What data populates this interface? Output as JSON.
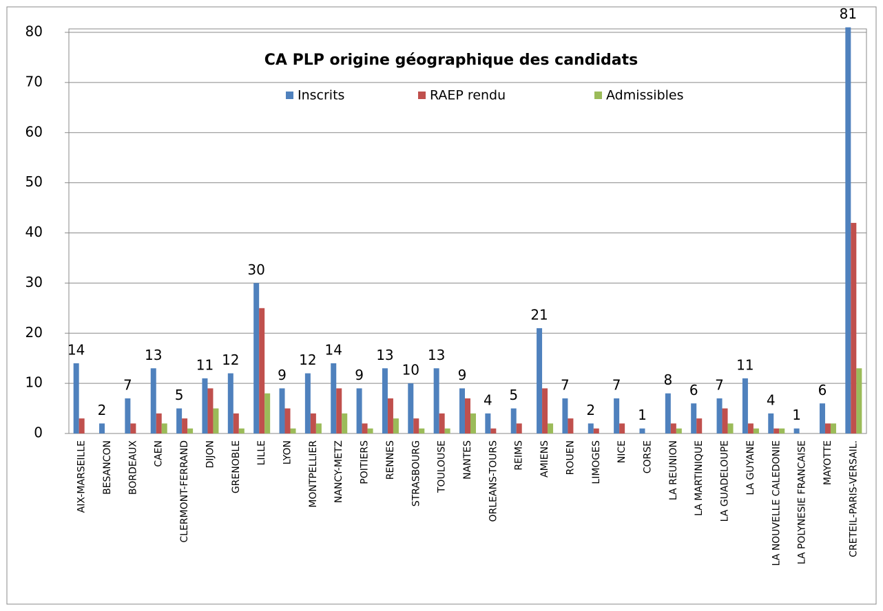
{
  "chart_data": {
    "type": "bar",
    "title": "CA PLP origine géographique des candidats",
    "categories": [
      "AIX-MARSEILLE",
      "BESANCON",
      "BORDEAUX",
      "CAEN",
      "CLERMONT-FERRAND",
      "DIJON",
      "GRENOBLE",
      "LILLE",
      "LYON",
      "MONTPELLIER",
      "NANCY-METZ",
      "POITIERS",
      "RENNES",
      "STRASBOURG",
      "TOULOUSE",
      "NANTES",
      "ORLEANS-TOURS",
      "REIMS",
      "AMIENS",
      "ROUEN",
      "LIMOGES",
      "NICE",
      "CORSE",
      "LA REUNION",
      "LA MARTINIQUE",
      "LA GUADELOUPE",
      "LA GUYANE",
      "LA NOUVELLE CALEDONIE",
      "LA POLYNESIE FRANCAISE",
      "MAYOTTE",
      "CRETEIL-PARIS-VERSAIL."
    ],
    "series": [
      {
        "name": "Inscrits",
        "color": "#4f81bd",
        "show_labels": true,
        "values": [
          14,
          2,
          7,
          13,
          5,
          11,
          12,
          30,
          9,
          12,
          14,
          9,
          13,
          10,
          13,
          9,
          4,
          5,
          21,
          7,
          2,
          7,
          1,
          8,
          6,
          7,
          11,
          4,
          1,
          6,
          81
        ]
      },
      {
        "name": "RAEP rendu",
        "color": "#c0504d",
        "show_labels": false,
        "values": [
          3,
          0,
          2,
          4,
          3,
          9,
          4,
          25,
          5,
          4,
          9,
          2,
          7,
          3,
          4,
          7,
          1,
          2,
          9,
          3,
          1,
          2,
          0,
          2,
          3,
          5,
          2,
          1,
          0,
          2,
          42
        ]
      },
      {
        "name": "Admissibles",
        "color": "#9bbb59",
        "show_labels": false,
        "values": [
          0,
          0,
          0,
          2,
          1,
          5,
          1,
          8,
          1,
          2,
          4,
          1,
          3,
          1,
          1,
          4,
          0,
          0,
          2,
          0,
          0,
          0,
          0,
          1,
          0,
          2,
          1,
          1,
          0,
          2,
          13
        ]
      }
    ],
    "ylim": [
      0,
      80
    ],
    "yticks": [
      0,
      10,
      20,
      30,
      40,
      50,
      60,
      70,
      80
    ],
    "grid": true,
    "legend": "top"
  }
}
